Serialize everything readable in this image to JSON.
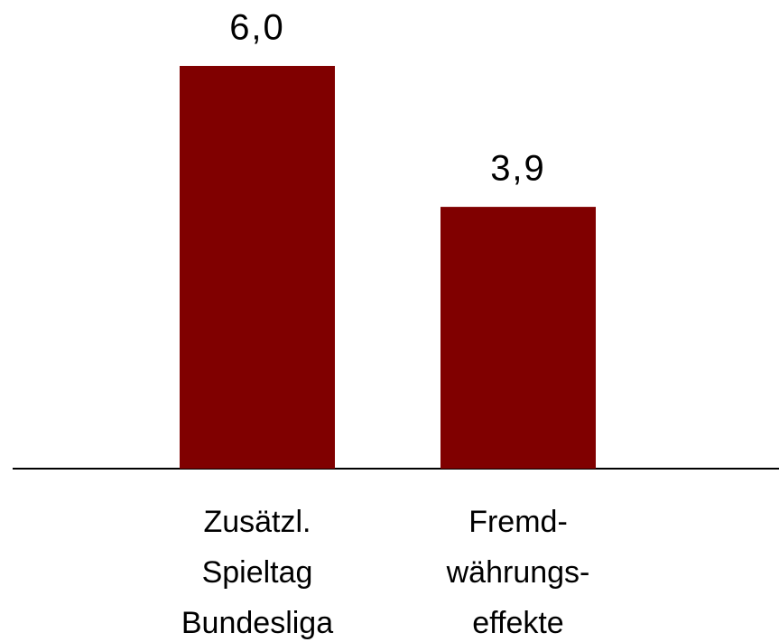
{
  "chart_data": {
    "type": "bar",
    "categories": [
      [
        "Zusätzl.",
        "Spieltag",
        "Bundesliga"
      ],
      [
        "Fremd-",
        "währungs-",
        "effekte"
      ]
    ],
    "values": [
      6.0,
      3.9
    ],
    "value_labels": [
      "6,0",
      "3,9"
    ],
    "color": "#800000"
  }
}
